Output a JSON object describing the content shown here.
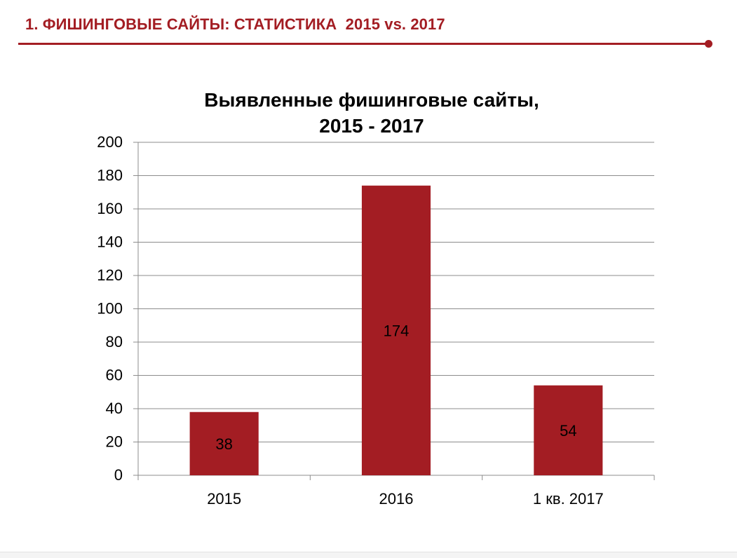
{
  "slide": {
    "title": "1. ФИШИНГОВЫЕ САЙТЫ: СТАТИСТИКА  2015 vs. 2017",
    "accent_color": "#a31d23"
  },
  "chart_data": {
    "type": "bar",
    "title": "Выявленные  фишинговые сайты,\n2015 - 2017",
    "categories": [
      "2015",
      "2016",
      "1 кв. 2017"
    ],
    "values": [
      38,
      174,
      54
    ],
    "data_labels": [
      "38",
      "174",
      "54"
    ],
    "xlabel": "",
    "ylabel": "",
    "ylim": [
      0,
      200
    ],
    "yticks": [
      0,
      20,
      40,
      60,
      80,
      100,
      120,
      140,
      160,
      180,
      200
    ],
    "grid": true,
    "legend": "none",
    "bar_color": "#a31d23"
  }
}
